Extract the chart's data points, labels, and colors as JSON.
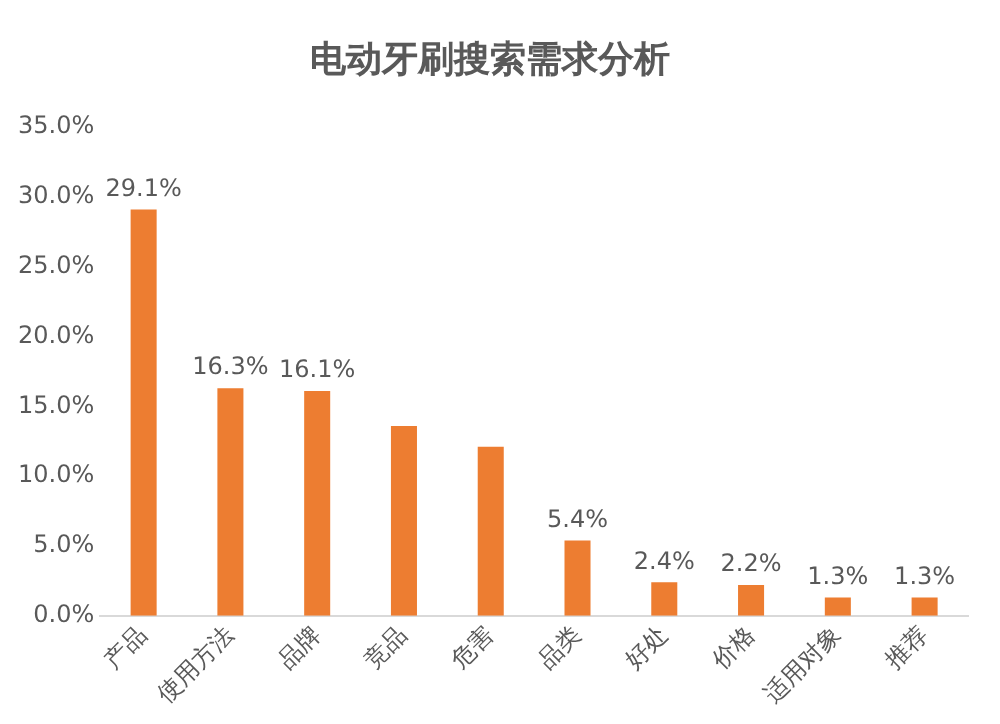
{
  "chart_data": {
    "type": "bar",
    "title": "电动牙刷搜索需求分析",
    "categories": [
      "产品",
      "使用方法",
      "品牌",
      "竞品",
      "危害",
      "品类",
      "好处",
      "价格",
      "适用对象",
      "推荐"
    ],
    "values": [
      29.1,
      16.3,
      16.1,
      13.6,
      12.1,
      5.4,
      2.4,
      2.2,
      1.3,
      1.3
    ],
    "value_labels": [
      "29.1%",
      "16.3%",
      "16.1%",
      null,
      null,
      "5.4%",
      "2.4%",
      "2.2%",
      "1.3%",
      "1.3%"
    ],
    "color": "#ed7d31",
    "ylim": [
      0,
      35
    ],
    "yticks": [
      {
        "value": 0,
        "label": "0.0%"
      },
      {
        "value": 5,
        "label": "5.0%"
      },
      {
        "value": 10,
        "label": "10.0%"
      },
      {
        "value": 15,
        "label": "15.0%"
      },
      {
        "value": 20,
        "label": "20.0%"
      },
      {
        "value": 25,
        "label": "25.0%"
      },
      {
        "value": 30,
        "label": "30.0%"
      },
      {
        "value": 35,
        "label": "35.0%"
      }
    ],
    "grid": false,
    "legend": false
  }
}
